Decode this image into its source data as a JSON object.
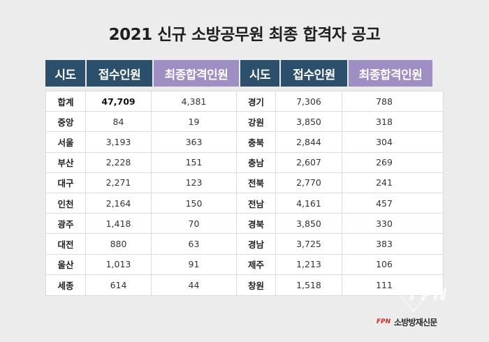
{
  "title": "2021 신규 소방공무원 최종 합격자 공고",
  "headers": [
    "시도",
    "접수인원",
    "최종합격인원",
    "시도",
    "접수인원",
    "최종합격인원"
  ],
  "rows": [
    [
      "합계",
      "47,709",
      "4,381",
      "경기",
      "7,306",
      "788"
    ],
    [
      "중앙",
      "84",
      "19",
      "강원",
      "3,850",
      "318"
    ],
    [
      "서울",
      "3,193",
      "363",
      "충북",
      "2,844",
      "304"
    ],
    [
      "부산",
      "2,228",
      "151",
      "충남",
      "2,607",
      "269"
    ],
    [
      "대구",
      "2,271",
      "123",
      "전북",
      "2,770",
      "241"
    ],
    [
      "인천",
      "2,164",
      "150",
      "전남",
      "4,161",
      "457"
    ],
    [
      "광주",
      "1,418",
      "70",
      "경북",
      "3,850",
      "330"
    ],
    [
      "대전",
      "880",
      "63",
      "경남",
      "3,725",
      "383"
    ],
    [
      "울산",
      "1,013",
      "91",
      "제주",
      "1,213",
      "106"
    ],
    [
      "세종",
      "614",
      "44",
      "창원",
      "1,518",
      "111"
    ]
  ],
  "logo": {
    "mark": "FPN",
    "text": "소방방재신문"
  },
  "watermark": "FPN",
  "colors": {
    "header_blue": "#2c4f6b",
    "header_purple": "#9f8ec4",
    "background": "#ececec",
    "logo_red": "#d9261c"
  }
}
